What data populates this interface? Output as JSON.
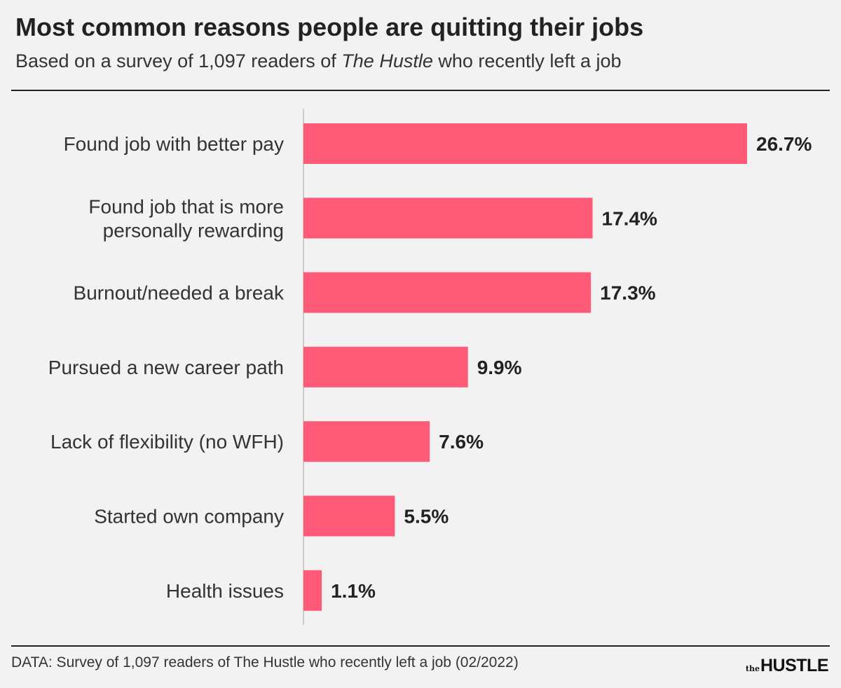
{
  "title": "Most common reasons people are quitting their jobs",
  "subtitle": {
    "before": "Based on a survey of 1,097 readers of ",
    "italic": "The Hustle",
    "after": " who recently left a job"
  },
  "source": "DATA: Survey of 1,097 readers of The Hustle who recently left a job (02/2022)",
  "logo": {
    "small": "the",
    "main": "HUSTLE"
  },
  "colors": {
    "bar": "#ff5b78",
    "background": "#f2f2f2",
    "text": "#222222",
    "axis": "#cccccc"
  },
  "chart_data": {
    "type": "bar",
    "orientation": "horizontal",
    "categories": [
      [
        "Found job with better pay"
      ],
      [
        "Found job that is more",
        "personally rewarding"
      ],
      [
        "Burnout/needed a break"
      ],
      [
        "Pursued a new career path"
      ],
      [
        "Lack of flexibility (no WFH)"
      ],
      [
        "Started own company"
      ],
      [
        "Health issues"
      ]
    ],
    "values": [
      26.7,
      17.4,
      17.3,
      9.9,
      7.6,
      5.5,
      1.1
    ],
    "value_labels": [
      "26.7%",
      "17.4%",
      "17.3%",
      "9.9%",
      "7.6%",
      "5.5%",
      "1.1%"
    ],
    "unit": "%",
    "xlim": [
      0,
      26.7
    ],
    "grid": false,
    "legend": "none"
  }
}
